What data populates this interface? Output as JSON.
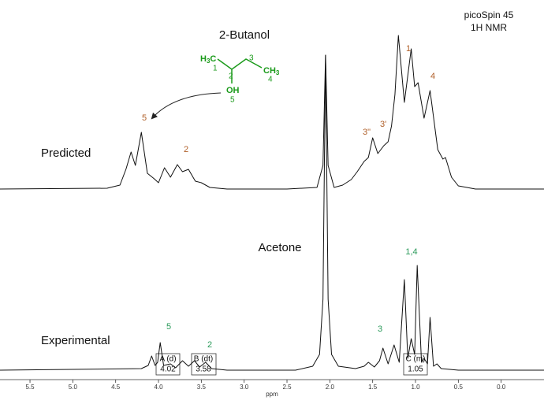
{
  "chart_data": {
    "type": "line",
    "title": "2-Butanol",
    "instrument": [
      "picoSpin 45",
      "1H NMR"
    ],
    "x_label": "ppm",
    "xlim": [
      5.85,
      -0.5
    ],
    "xticks": [
      5.5,
      {
        "value": 5.0,
        "label": "5.0"
      },
      4.5,
      {
        "value": 4.0,
        "label": "4.0"
      },
      3.5,
      {
        "value": 3.0,
        "label": "3.0"
      },
      2.5,
      {
        "value": 2.0,
        "label": "2.0"
      },
      1.5,
      {
        "value": 1.0,
        "label": "1.0"
      },
      0.5,
      {
        "value": 0.0,
        "label": "0.0"
      }
    ],
    "series": [
      {
        "name": "Predicted",
        "color": "#111111",
        "x": [
          5.85,
          4.6,
          4.45,
          4.38,
          4.32,
          4.27,
          4.2,
          4.13,
          4.05,
          4.0,
          3.93,
          3.86,
          3.78,
          3.72,
          3.65,
          3.57,
          3.5,
          3.4,
          3.2,
          2.5,
          2.15,
          2.08,
          2.05,
          2.02,
          1.95,
          1.85,
          1.75,
          1.68,
          1.6,
          1.55,
          1.5,
          1.44,
          1.37,
          1.32,
          1.28,
          1.24,
          1.2,
          1.13,
          1.05,
          1.01,
          0.97,
          0.9,
          0.83,
          0.74,
          0.68,
          0.65,
          0.58,
          0.5,
          0.3,
          -0.5
        ],
        "values": [
          0,
          1,
          5,
          25,
          47,
          30,
          72,
          20,
          13,
          8,
          27,
          15,
          31,
          22,
          25,
          10,
          8,
          2,
          0,
          0,
          2,
          30,
          170,
          30,
          2,
          5,
          12,
          22,
          35,
          40,
          65,
          45,
          55,
          60,
          80,
          120,
          195,
          110,
          178,
          130,
          135,
          90,
          125,
          50,
          38,
          40,
          15,
          4,
          0,
          0
        ]
      },
      {
        "name": "Experimental",
        "color": "#111111",
        "x": [
          5.85,
          4.2,
          4.12,
          4.08,
          4.04,
          4.01,
          3.98,
          3.94,
          3.86,
          3.8,
          3.72,
          3.65,
          3.58,
          3.52,
          3.45,
          3.38,
          3.2,
          2.4,
          2.2,
          2.12,
          2.08,
          2.05,
          2.02,
          1.98,
          1.9,
          1.7,
          1.6,
          1.55,
          1.48,
          1.42,
          1.38,
          1.32,
          1.25,
          1.19,
          1.13,
          1.09,
          1.05,
          1.01,
          0.98,
          0.93,
          0.9,
          0.86,
          0.83,
          0.79,
          0.75,
          0.7,
          0.5,
          -0.5
        ],
        "values": [
          0,
          2,
          6,
          18,
          6,
          10,
          35,
          6,
          8,
          3,
          12,
          5,
          12,
          4,
          10,
          2,
          0,
          0,
          5,
          20,
          90,
          400,
          90,
          20,
          5,
          2,
          5,
          10,
          4,
          12,
          28,
          8,
          32,
          10,
          115,
          15,
          40,
          20,
          133,
          10,
          15,
          8,
          67,
          5,
          8,
          2,
          0,
          0
        ]
      }
    ],
    "molecule": {
      "atoms": [
        [
          "H",
          "3",
          "C"
        ],
        [
          "C",
          "H",
          "3"
        ],
        [
          "OH"
        ]
      ],
      "numbers": [
        "1",
        "2",
        "3",
        "4",
        "5"
      ]
    },
    "predicted_labels": [
      "1",
      "4",
      "3\"",
      "3'",
      "5",
      "2"
    ],
    "solvent_label": "Acetone",
    "experimental_labels": [
      "1,4",
      "3",
      "5",
      "2"
    ],
    "peak_boxes": [
      {
        "label": "A (d)",
        "shift": "4.02"
      },
      {
        "label": "B (dt)",
        "shift": "3.58"
      },
      {
        "label": "C (m)",
        "shift": "1.05"
      }
    ]
  }
}
